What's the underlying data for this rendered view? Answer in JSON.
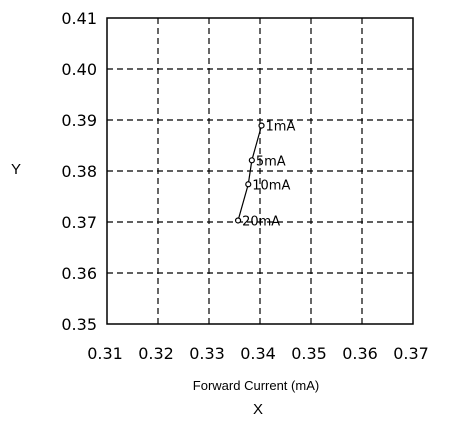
{
  "chart_data": {
    "type": "line",
    "title": "",
    "xlabel": "Forward Current (mA)",
    "x_axis_letter": "X",
    "ylabel": "Y",
    "xlim": [
      0.31,
      0.37
    ],
    "ylim": [
      0.35,
      0.41
    ],
    "x_ticks": [
      "0.31",
      "0.32",
      "0.33",
      "0.34",
      "0.35",
      "0.36",
      "0.37"
    ],
    "y_ticks": [
      "0.35",
      "0.36",
      "0.37",
      "0.38",
      "0.39",
      "0.40",
      "0.41"
    ],
    "grid": true,
    "series": [
      {
        "points": [
          {
            "x": 0.3403,
            "y": 0.3889,
            "label": "1mA"
          },
          {
            "x": 0.3384,
            "y": 0.3821,
            "label": "5mA"
          },
          {
            "x": 0.3377,
            "y": 0.3774,
            "label": "10mA"
          },
          {
            "x": 0.3357,
            "y": 0.3703,
            "label": "20mA"
          }
        ]
      }
    ]
  }
}
